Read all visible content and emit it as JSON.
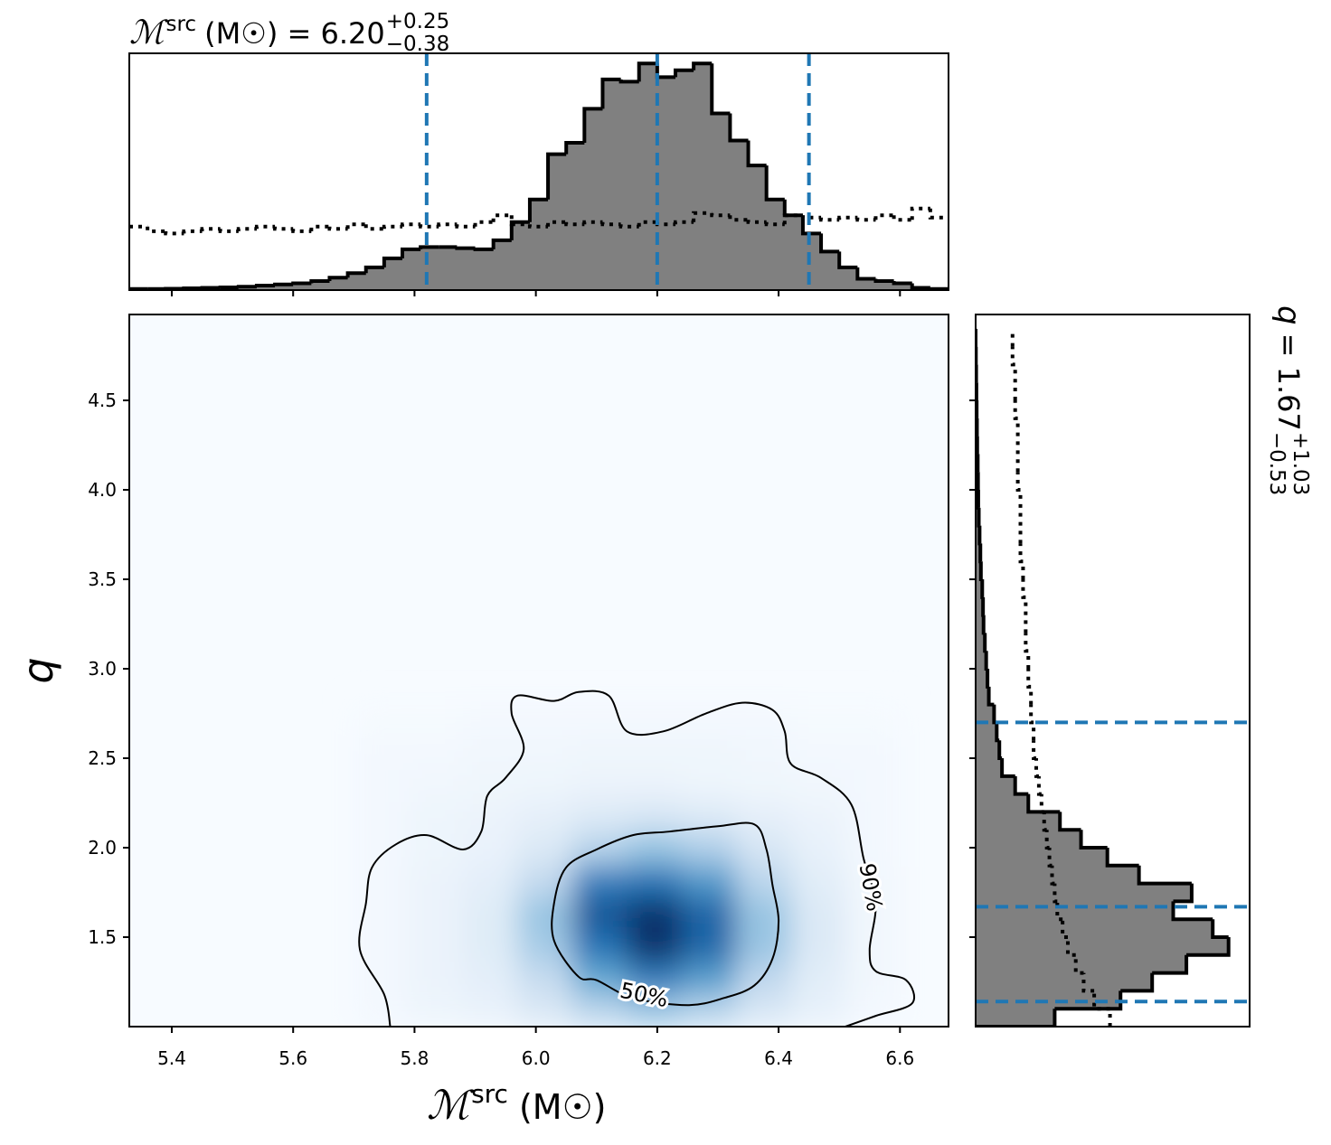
{
  "chart_data": {
    "type": "corner",
    "title": {
      "symbol": "ℳ",
      "sup": "src",
      "text": "(M☉) = 6.20",
      "upper": "+0.25",
      "lower": "−0.38"
    },
    "x_label": {
      "symbol": "ℳ",
      "sup": "src",
      "unit": "(M☉)"
    },
    "y_label": "q",
    "y_title": {
      "symbol": "q",
      "text": "= 1.67",
      "upper": "+1.03",
      "lower": "−0.53"
    },
    "xlim": [
      5.33,
      6.68
    ],
    "ylim": [
      1.0,
      4.98
    ],
    "xticks": [
      5.4,
      5.6,
      5.8,
      {
        "value": 6,
        "label": "6.0"
      },
      6.2,
      6.4,
      6.6
    ],
    "yticks": [
      1.5,
      {
        "value": 2,
        "label": "2.0"
      },
      2.5,
      {
        "value": 3,
        "label": "3.0"
      },
      3.5,
      {
        "value": 4,
        "label": "4.0"
      },
      4.5
    ],
    "hist_color": "#808080",
    "quantile_color": "#1f77b4",
    "density": {
      "x_edges": [
        5.7,
        5.79,
        5.88,
        5.97,
        6.06,
        6.15,
        6.24,
        6.33,
        6.42,
        6.51,
        6.6
      ],
      "y_edges": [
        1.0,
        1.18,
        1.36,
        1.54,
        1.72,
        1.9,
        2.08,
        2.26,
        2.44,
        2.62,
        2.8
      ],
      "z": [
        [
          0.02,
          0.05,
          0.07,
          0.15,
          0.28,
          0.36,
          0.29,
          0.16,
          0.08,
          0.02
        ],
        [
          0.02,
          0.06,
          0.1,
          0.25,
          0.52,
          0.7,
          0.56,
          0.27,
          0.11,
          0.03
        ],
        [
          0.02,
          0.06,
          0.12,
          0.34,
          0.74,
          1.0,
          0.79,
          0.37,
          0.14,
          0.03
        ],
        [
          0.02,
          0.06,
          0.12,
          0.38,
          0.85,
          1.0,
          0.8,
          0.38,
          0.14,
          0.03
        ],
        [
          0.02,
          0.06,
          0.1,
          0.26,
          0.7,
          0.74,
          0.59,
          0.28,
          0.11,
          0.03
        ],
        [
          0.02,
          0.05,
          0.07,
          0.15,
          0.3,
          0.39,
          0.32,
          0.17,
          0.08,
          0.02
        ],
        [
          0.02,
          0.05,
          0.06,
          0.09,
          0.14,
          0.17,
          0.14,
          0.09,
          0.06,
          0.02
        ],
        [
          0.02,
          0.03,
          0.04,
          0.05,
          0.06,
          0.06,
          0.05,
          0.04,
          0.03,
          0.02
        ],
        [
          0.02,
          0.02,
          0.03,
          0.03,
          0.04,
          0.04,
          0.04,
          0.03,
          0.02,
          0.02
        ],
        [
          0.01,
          0.01,
          0.02,
          0.02,
          0.02,
          0.02,
          0.02,
          0.02,
          0.01,
          0.01
        ]
      ]
    },
    "contours": [
      {
        "label": "50%",
        "x": [
          6.07,
          6.03,
          6.03,
          6.05,
          6.1,
          6.16,
          6.22,
          6.3,
          6.36,
          6.38,
          6.39,
          6.4,
          6.39,
          6.36,
          6.31,
          6.25,
          6.16,
          6.1
        ],
        "y": [
          1.28,
          1.48,
          1.69,
          1.89,
          1.99,
          2.07,
          2.09,
          2.12,
          2.13,
          1.99,
          1.79,
          1.59,
          1.38,
          1.23,
          1.16,
          1.12,
          1.16,
          1.26
        ]
      },
      {
        "label": "90%",
        "x": [
          5.76,
          5.75,
          5.71,
          5.72,
          5.73,
          5.77,
          5.82,
          5.88,
          5.91,
          5.92,
          5.95,
          5.98,
          5.96,
          5.97,
          6.03,
          6.07,
          6.12,
          6.15,
          6.21,
          6.28,
          6.34,
          6.39,
          6.41,
          6.42,
          6.47,
          6.52,
          6.54,
          6.56,
          6.55,
          6.56,
          6.61,
          6.62,
          6.56,
          6.51
        ],
        "y": [
          1.0,
          1.18,
          1.43,
          1.69,
          1.89,
          2.02,
          2.07,
          1.99,
          2.09,
          2.29,
          2.39,
          2.55,
          2.75,
          2.85,
          2.82,
          2.87,
          2.85,
          2.65,
          2.65,
          2.75,
          2.81,
          2.77,
          2.65,
          2.47,
          2.39,
          2.24,
          1.94,
          1.69,
          1.43,
          1.31,
          1.26,
          1.13,
          1.06,
          1.0
        ]
      }
    ],
    "hist_x": {
      "ylim": [
        0,
        1.045
      ],
      "bins": [
        5.33,
        5.36,
        5.39,
        5.42,
        5.45,
        5.48,
        5.51,
        5.54,
        5.57,
        5.6,
        5.63,
        5.66,
        5.69,
        5.72,
        5.75,
        5.78,
        5.81,
        5.84,
        5.87,
        5.9,
        5.93,
        5.96,
        5.99,
        6.02,
        6.05,
        6.08,
        6.11,
        6.14,
        6.17,
        6.2,
        6.23,
        6.26,
        6.29,
        6.32,
        6.35,
        6.38,
        6.41,
        6.44,
        6.47,
        6.5,
        6.53,
        6.56,
        6.59,
        6.62,
        6.65,
        6.68
      ],
      "values": [
        0.005,
        0.005,
        0.006,
        0.008,
        0.01,
        0.012,
        0.015,
        0.02,
        0.025,
        0.03,
        0.04,
        0.055,
        0.075,
        0.1,
        0.14,
        0.18,
        0.19,
        0.19,
        0.185,
        0.18,
        0.22,
        0.3,
        0.4,
        0.6,
        0.65,
        0.8,
        0.93,
        0.92,
        1.0,
        0.94,
        0.97,
        1.0,
        0.78,
        0.66,
        0.55,
        0.4,
        0.33,
        0.25,
        0.17,
        0.1,
        0.05,
        0.04,
        0.03,
        0.01,
        0.005
      ],
      "prior": [
        0.28,
        0.26,
        0.25,
        0.26,
        0.27,
        0.26,
        0.27,
        0.28,
        0.27,
        0.26,
        0.28,
        0.27,
        0.29,
        0.27,
        0.28,
        0.29,
        0.28,
        0.29,
        0.28,
        0.3,
        0.33,
        0.29,
        0.28,
        0.3,
        0.29,
        0.3,
        0.29,
        0.28,
        0.3,
        0.29,
        0.3,
        0.34,
        0.33,
        0.31,
        0.3,
        0.29,
        0.33,
        0.32,
        0.31,
        0.32,
        0.31,
        0.33,
        0.31,
        0.36,
        0.32
      ],
      "quantiles": [
        5.82,
        6.2,
        6.45
      ]
    },
    "hist_y": {
      "xlim": [
        0,
        1.04
      ],
      "bins": [
        1.0,
        1.1,
        1.2,
        1.3,
        1.4,
        1.5,
        1.6,
        1.7,
        1.8,
        1.9,
        2.0,
        2.1,
        2.2,
        2.3,
        2.4,
        2.5,
        2.6,
        2.7,
        2.8,
        2.9,
        3.0,
        3.1,
        3.2,
        3.3,
        3.4,
        3.5,
        3.6,
        3.7,
        3.8,
        3.9,
        4.0,
        4.1,
        4.2,
        4.3,
        4.4,
        4.5,
        4.6,
        4.7,
        4.8,
        4.9
      ],
      "values": [
        0.3,
        0.55,
        0.67,
        0.8,
        0.96,
        0.9,
        0.75,
        0.82,
        0.62,
        0.5,
        0.4,
        0.32,
        0.2,
        0.15,
        0.1,
        0.09,
        0.08,
        0.07,
        0.05,
        0.045,
        0.04,
        0.035,
        0.03,
        0.028,
        0.025,
        0.02,
        0.018,
        0.015,
        0.012,
        0.01,
        0.009,
        0.008,
        0.006,
        0.005,
        0.004,
        0.003,
        0.002,
        0.001,
        0
      ],
      "prior": [
        0.51,
        0.45,
        0.41,
        0.38,
        0.35,
        0.33,
        0.31,
        0.3,
        0.29,
        0.28,
        0.27,
        0.26,
        0.25,
        0.24,
        0.23,
        0.22,
        0.22,
        0.21,
        0.21,
        0.2,
        0.2,
        0.19,
        0.19,
        0.19,
        0.18,
        0.18,
        0.17,
        0.17,
        0.17,
        0.17,
        0.16,
        0.16,
        0.16,
        0.16,
        0.15,
        0.15,
        0.15,
        0.14,
        0.14
      ],
      "quantiles": [
        1.14,
        1.67,
        2.7
      ]
    }
  }
}
